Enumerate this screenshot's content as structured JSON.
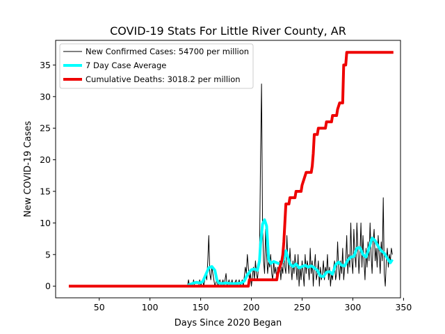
{
  "chart_data": {
    "type": "line",
    "title": "COVID-19 Stats For Little River County, AR",
    "xlabel": "Days Since 2020 Began",
    "ylabel": "New COVID-19 Cases",
    "xlim": [
      7,
      347
    ],
    "ylim": [
      -1.85,
      38.9
    ],
    "xticks": [
      50,
      100,
      150,
      200,
      250,
      300,
      350
    ],
    "yticks": [
      0,
      5,
      10,
      15,
      20,
      25,
      30,
      35
    ],
    "grid": false,
    "legend_position": "top-left",
    "series": [
      {
        "name": "New Confirmed Cases: 54700 per million",
        "color": "#000000",
        "linewidth": 1,
        "points": [
          [
            20,
            0
          ],
          [
            137,
            0
          ],
          [
            138,
            1
          ],
          [
            139,
            0
          ],
          [
            142,
            0
          ],
          [
            143,
            1
          ],
          [
            144,
            0
          ],
          [
            148,
            0
          ],
          [
            149,
            1
          ],
          [
            150,
            0
          ],
          [
            152,
            1
          ],
          [
            153,
            0
          ],
          [
            155,
            2
          ],
          [
            156,
            1
          ],
          [
            157,
            4
          ],
          [
            158,
            8
          ],
          [
            159,
            2
          ],
          [
            160,
            1
          ],
          [
            161,
            3
          ],
          [
            162,
            2
          ],
          [
            163,
            1
          ],
          [
            164,
            0
          ],
          [
            166,
            1
          ],
          [
            167,
            0
          ],
          [
            169,
            1
          ],
          [
            170,
            0
          ],
          [
            172,
            1
          ],
          [
            173,
            0
          ],
          [
            175,
            2
          ],
          [
            176,
            0
          ],
          [
            178,
            1
          ],
          [
            179,
            0
          ],
          [
            181,
            1
          ],
          [
            182,
            0
          ],
          [
            185,
            1
          ],
          [
            186,
            0
          ],
          [
            188,
            1
          ],
          [
            189,
            0
          ],
          [
            191,
            1
          ],
          [
            192,
            0
          ],
          [
            194,
            3
          ],
          [
            195,
            2
          ],
          [
            196,
            5
          ],
          [
            197,
            3
          ],
          [
            198,
            1
          ],
          [
            199,
            2
          ],
          [
            200,
            0
          ],
          [
            202,
            3
          ],
          [
            203,
            1
          ],
          [
            204,
            4
          ],
          [
            205,
            2
          ],
          [
            206,
            1
          ],
          [
            207,
            3
          ],
          [
            208,
            5
          ],
          [
            209,
            20
          ],
          [
            210,
            32
          ],
          [
            211,
            10
          ],
          [
            212,
            4
          ],
          [
            213,
            2
          ],
          [
            214,
            9
          ],
          [
            215,
            5
          ],
          [
            216,
            2
          ],
          [
            217,
            4
          ],
          [
            218,
            3
          ],
          [
            219,
            5
          ],
          [
            220,
            2
          ],
          [
            221,
            1
          ],
          [
            222,
            4
          ],
          [
            223,
            2
          ],
          [
            224,
            3
          ],
          [
            225,
            1
          ],
          [
            226,
            3
          ],
          [
            227,
            2
          ],
          [
            228,
            4
          ],
          [
            229,
            1
          ],
          [
            230,
            3
          ],
          [
            231,
            2
          ],
          [
            232,
            6
          ],
          [
            233,
            3
          ],
          [
            234,
            2
          ],
          [
            235,
            8
          ],
          [
            236,
            4
          ],
          [
            237,
            2
          ],
          [
            238,
            6
          ],
          [
            239,
            3
          ],
          [
            240,
            1
          ],
          [
            241,
            4
          ],
          [
            242,
            2
          ],
          [
            243,
            5
          ],
          [
            244,
            3
          ],
          [
            245,
            1
          ],
          [
            246,
            5
          ],
          [
            247,
            0
          ],
          [
            248,
            3
          ],
          [
            249,
            1
          ],
          [
            250,
            4
          ],
          [
            251,
            2
          ],
          [
            252,
            0
          ],
          [
            253,
            5
          ],
          [
            254,
            2
          ],
          [
            255,
            4
          ],
          [
            256,
            3
          ],
          [
            257,
            1
          ],
          [
            258,
            6
          ],
          [
            259,
            2
          ],
          [
            260,
            4
          ],
          [
            261,
            0
          ],
          [
            262,
            3
          ],
          [
            263,
            5
          ],
          [
            264,
            1
          ],
          [
            265,
            2
          ],
          [
            266,
            4
          ],
          [
            267,
            0
          ],
          [
            268,
            3
          ],
          [
            269,
            1
          ],
          [
            270,
            2
          ],
          [
            271,
            4
          ],
          [
            272,
            1
          ],
          [
            273,
            3
          ],
          [
            274,
            2
          ],
          [
            275,
            5
          ],
          [
            276,
            1
          ],
          [
            277,
            3
          ],
          [
            278,
            0
          ],
          [
            279,
            2
          ],
          [
            280,
            1
          ],
          [
            281,
            3
          ],
          [
            282,
            4
          ],
          [
            283,
            1
          ],
          [
            284,
            2
          ],
          [
            285,
            7
          ],
          [
            286,
            3
          ],
          [
            287,
            1
          ],
          [
            288,
            4
          ],
          [
            289,
            2
          ],
          [
            290,
            6
          ],
          [
            291,
            1
          ],
          [
            292,
            3
          ],
          [
            293,
            4
          ],
          [
            294,
            8
          ],
          [
            295,
            2
          ],
          [
            296,
            5
          ],
          [
            297,
            3
          ],
          [
            298,
            10
          ],
          [
            299,
            4
          ],
          [
            300,
            2
          ],
          [
            301,
            9
          ],
          [
            302,
            5
          ],
          [
            303,
            3
          ],
          [
            304,
            10
          ],
          [
            305,
            6
          ],
          [
            306,
            2
          ],
          [
            307,
            5
          ],
          [
            308,
            10
          ],
          [
            309,
            3
          ],
          [
            310,
            8
          ],
          [
            311,
            4
          ],
          [
            312,
            1
          ],
          [
            313,
            6
          ],
          [
            314,
            3
          ],
          [
            315,
            7
          ],
          [
            316,
            4
          ],
          [
            317,
            10
          ],
          [
            318,
            5
          ],
          [
            319,
            2
          ],
          [
            320,
            7
          ],
          [
            321,
            9
          ],
          [
            322,
            4
          ],
          [
            323,
            6
          ],
          [
            324,
            3
          ],
          [
            325,
            8
          ],
          [
            326,
            5
          ],
          [
            327,
            2
          ],
          [
            328,
            7
          ],
          [
            329,
            4
          ],
          [
            330,
            14
          ],
          [
            331,
            2
          ],
          [
            332,
            0
          ],
          [
            333,
            4
          ],
          [
            334,
            6
          ],
          [
            335,
            3
          ],
          [
            336,
            5
          ],
          [
            337,
            4
          ],
          [
            338,
            6
          ],
          [
            339,
            5
          ]
        ]
      },
      {
        "name": "7 Day Case Average",
        "color": "#00ffff",
        "linewidth": 4,
        "points": [
          [
            137,
            0.1
          ],
          [
            140,
            0.3
          ],
          [
            143,
            0.5
          ],
          [
            146,
            0.6
          ],
          [
            149,
            0.5
          ],
          [
            152,
            0.7
          ],
          [
            155,
            1.8
          ],
          [
            158,
            2.9
          ],
          [
            161,
            3.1
          ],
          [
            164,
            2.5
          ],
          [
            166,
            1.0
          ],
          [
            168,
            0.5
          ],
          [
            171,
            0.4
          ],
          [
            175,
            0.5
          ],
          [
            180,
            0.4
          ],
          [
            185,
            0.4
          ],
          [
            190,
            0.5
          ],
          [
            193,
            0.8
          ],
          [
            196,
            1.8
          ],
          [
            198,
            2.2
          ],
          [
            200,
            2.6
          ],
          [
            203,
            2.7
          ],
          [
            206,
            2.5
          ],
          [
            208,
            4.0
          ],
          [
            209,
            6.6
          ],
          [
            211,
            9.8
          ],
          [
            213,
            10.5
          ],
          [
            215,
            9.5
          ],
          [
            217,
            4.3
          ],
          [
            219,
            3.6
          ],
          [
            222,
            3.9
          ],
          [
            225,
            3.7
          ],
          [
            228,
            3.5
          ],
          [
            231,
            3.9
          ],
          [
            234,
            5.6
          ],
          [
            236,
            4.5
          ],
          [
            238,
            3.5
          ],
          [
            241,
            3.1
          ],
          [
            244,
            3.5
          ],
          [
            247,
            2.9
          ],
          [
            250,
            3.1
          ],
          [
            253,
            3.3
          ],
          [
            256,
            3.0
          ],
          [
            259,
            3.2
          ],
          [
            262,
            2.9
          ],
          [
            265,
            2.5
          ],
          [
            268,
            1.6
          ],
          [
            271,
            1.5
          ],
          [
            274,
            2.2
          ],
          [
            277,
            2.3
          ],
          [
            280,
            1.9
          ],
          [
            283,
            3.4
          ],
          [
            286,
            3.8
          ],
          [
            289,
            3.3
          ],
          [
            292,
            3.2
          ],
          [
            295,
            4.1
          ],
          [
            298,
            4.6
          ],
          [
            301,
            4.7
          ],
          [
            304,
            6.0
          ],
          [
            307,
            6.1
          ],
          [
            310,
            5.0
          ],
          [
            313,
            4.6
          ],
          [
            316,
            6.0
          ],
          [
            319,
            7.6
          ],
          [
            322,
            7.2
          ],
          [
            325,
            6.3
          ],
          [
            328,
            5.6
          ],
          [
            331,
            5.2
          ],
          [
            334,
            4.4
          ],
          [
            337,
            3.7
          ],
          [
            339,
            4.2
          ]
        ]
      },
      {
        "name": "Cumulative Deaths: 3018.2 per million",
        "color": "#ee0000",
        "linewidth": 4,
        "points": [
          [
            20,
            0
          ],
          [
            197,
            0
          ],
          [
            198,
            1
          ],
          [
            225,
            1
          ],
          [
            226,
            2
          ],
          [
            228,
            3
          ],
          [
            230,
            4
          ],
          [
            231,
            5
          ],
          [
            232,
            7
          ],
          [
            233,
            10
          ],
          [
            234,
            13
          ],
          [
            237,
            13
          ],
          [
            238,
            14
          ],
          [
            243,
            14
          ],
          [
            244,
            15
          ],
          [
            249,
            15
          ],
          [
            250,
            16
          ],
          [
            252,
            17
          ],
          [
            254,
            18
          ],
          [
            259,
            18
          ],
          [
            260,
            19
          ],
          [
            261,
            21
          ],
          [
            262,
            24
          ],
          [
            265,
            24
          ],
          [
            266,
            25
          ],
          [
            273,
            25
          ],
          [
            274,
            26
          ],
          [
            279,
            26
          ],
          [
            280,
            27
          ],
          [
            284,
            27
          ],
          [
            285,
            28
          ],
          [
            287,
            29
          ],
          [
            290,
            29
          ],
          [
            291,
            35
          ],
          [
            293,
            35
          ],
          [
            294,
            37
          ],
          [
            340,
            37
          ]
        ]
      }
    ]
  }
}
